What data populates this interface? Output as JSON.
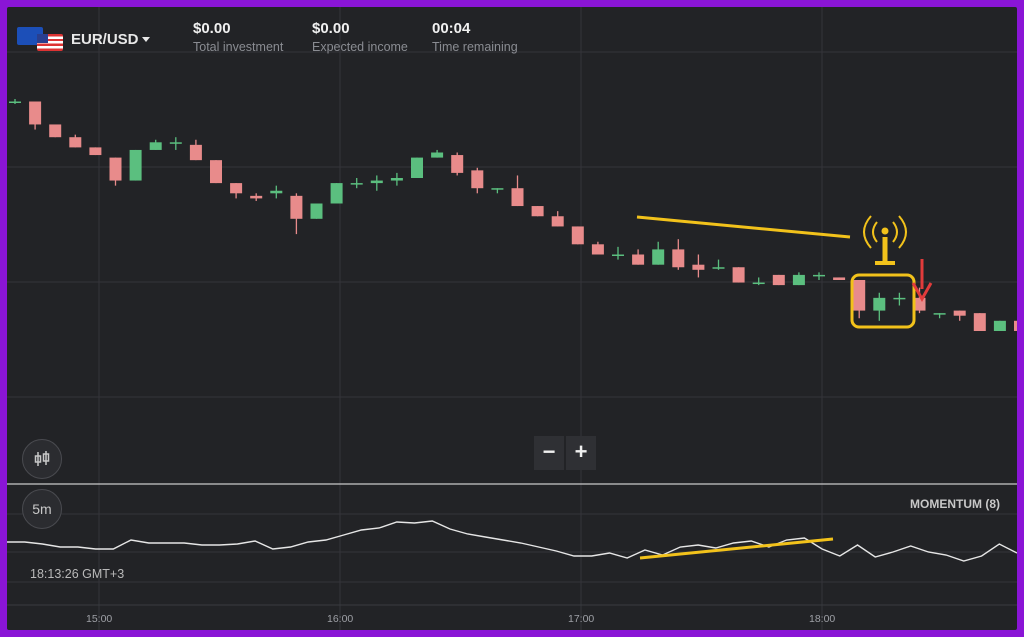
{
  "asset": {
    "pair": "EUR/USD"
  },
  "stats": [
    {
      "value": "$0.00",
      "label": "Total investment"
    },
    {
      "value": "$0.00",
      "label": "Expected income"
    },
    {
      "value": "00:04",
      "label": "Time remaining"
    }
  ],
  "controls": {
    "chart_type_icon": "candles-icon",
    "timeframe": "5m",
    "zoom_out": "−",
    "zoom_in": "+"
  },
  "indicator": {
    "name": "MOMENTUM (8)"
  },
  "clock": "18:13:26 GMT+3",
  "time_axis": [
    "15:00",
    "16:00",
    "17:00",
    "18:00"
  ],
  "colors": {
    "bull": "#5bbf7f",
    "bear": "#e88b8b",
    "annotation": "#f2c21b",
    "arrow": "#e23b3b",
    "background": "#222326",
    "border": "#8a15d6"
  },
  "chart_data": [
    {
      "type": "candlestick",
      "x_step_minutes": 5,
      "candles": [
        [
          1.0,
          1.1,
          0.9,
          1.0
        ],
        [
          1.0,
          1.0,
          -0.1,
          0.1
        ],
        [
          0.1,
          0.1,
          -0.4,
          -0.4
        ],
        [
          -0.4,
          -0.3,
          -0.8,
          -0.8
        ],
        [
          -0.8,
          -0.8,
          -1.1,
          -1.1
        ],
        [
          -1.2,
          -1.2,
          -2.3,
          -2.1
        ],
        [
          -2.1,
          -0.9,
          -2.1,
          -0.9
        ],
        [
          -0.9,
          -0.5,
          -0.9,
          -0.6
        ],
        [
          -0.6,
          -0.4,
          -0.9,
          -0.6
        ],
        [
          -0.7,
          -0.5,
          -1.3,
          -1.3
        ],
        [
          -1.3,
          -1.3,
          -2.2,
          -2.2
        ],
        [
          -2.2,
          -2.2,
          -2.8,
          -2.6
        ],
        [
          -2.7,
          -2.6,
          -2.9,
          -2.8
        ],
        [
          -2.6,
          -2.3,
          -2.8,
          -2.5
        ],
        [
          -2.7,
          -2.6,
          -4.2,
          -3.6
        ],
        [
          -3.6,
          -3.0,
          -3.6,
          -3.0
        ],
        [
          -3.0,
          -2.2,
          -3.0,
          -2.2
        ],
        [
          -2.2,
          -2.0,
          -2.4,
          -2.2
        ],
        [
          -2.2,
          -1.9,
          -2.5,
          -2.1
        ],
        [
          -2.1,
          -1.8,
          -2.3,
          -2.0
        ],
        [
          -2.0,
          -1.2,
          -2.0,
          -1.2
        ],
        [
          -1.2,
          -0.9,
          -1.2,
          -1.0
        ],
        [
          -1.1,
          -1.0,
          -1.9,
          -1.8
        ],
        [
          -1.7,
          -1.6,
          -2.6,
          -2.4
        ],
        [
          -2.4,
          -2.4,
          -2.6,
          -2.4
        ],
        [
          -2.4,
          -1.9,
          -3.1,
          -3.1
        ],
        [
          -3.1,
          -3.1,
          -3.5,
          -3.5
        ],
        [
          -3.5,
          -3.3,
          -3.9,
          -3.9
        ],
        [
          -3.9,
          -3.9,
          -4.6,
          -4.6
        ],
        [
          -4.6,
          -4.5,
          -5.0,
          -5.0
        ],
        [
          -5.0,
          -4.7,
          -5.2,
          -5.0
        ],
        [
          -5.0,
          -4.8,
          -5.4,
          -5.4
        ],
        [
          -5.4,
          -4.5,
          -5.4,
          -4.8
        ],
        [
          -4.8,
          -4.4,
          -5.6,
          -5.5
        ],
        [
          -5.4,
          -5.0,
          -5.9,
          -5.6
        ],
        [
          -5.5,
          -5.2,
          -5.6,
          -5.5
        ],
        [
          -5.5,
          -5.5,
          -6.1,
          -6.1
        ],
        [
          -6.1,
          -5.9,
          -6.2,
          -6.1
        ],
        [
          -5.8,
          -5.8,
          -6.2,
          -6.2
        ],
        [
          -6.2,
          -5.7,
          -6.2,
          -5.8
        ],
        [
          -5.8,
          -5.7,
          -6.0,
          -5.8
        ],
        [
          -5.9,
          -5.9,
          -6.0,
          -6.0
        ],
        [
          -6.0,
          -6.0,
          -7.5,
          -7.2
        ],
        [
          -7.2,
          -6.5,
          -7.6,
          -6.7
        ],
        [
          -6.7,
          -6.5,
          -7.0,
          -6.7
        ],
        [
          -6.7,
          -6.3,
          -7.3,
          -7.2
        ],
        [
          -7.3,
          -7.3,
          -7.5,
          -7.3
        ],
        [
          -7.2,
          -7.2,
          -7.6,
          -7.4
        ],
        [
          -7.3,
          -7.3,
          -8.0,
          -8.0
        ],
        [
          -8.0,
          -7.6,
          -8.0,
          -7.6
        ],
        [
          -7.6,
          -7.6,
          -8.2,
          -8.0
        ]
      ]
    },
    {
      "type": "line",
      "name": "MOMENTUM (8)",
      "values": [
        1.0,
        1.0,
        0.8,
        0.5,
        0.5,
        0.3,
        0.3,
        1.2,
        0.9,
        0.9,
        0.9,
        0.7,
        0.7,
        0.8,
        1.1,
        0.3,
        0.5,
        1.0,
        1.2,
        1.7,
        2.2,
        2.4,
        3.0,
        2.9,
        3.1,
        2.3,
        1.8,
        1.5,
        1.2,
        0.9,
        0.5,
        0.1,
        -0.4,
        -0.4,
        -0.1,
        -0.6,
        0.2,
        -0.3,
        0.5,
        0.7,
        0.4,
        0.9,
        1.1,
        0.5,
        1.2,
        1.4,
        0.3,
        -0.4,
        0.7,
        -0.5,
        0.0,
        0.6,
        0.0,
        -0.3,
        -0.9,
        -0.4,
        0.8,
        -0.1
      ]
    }
  ]
}
